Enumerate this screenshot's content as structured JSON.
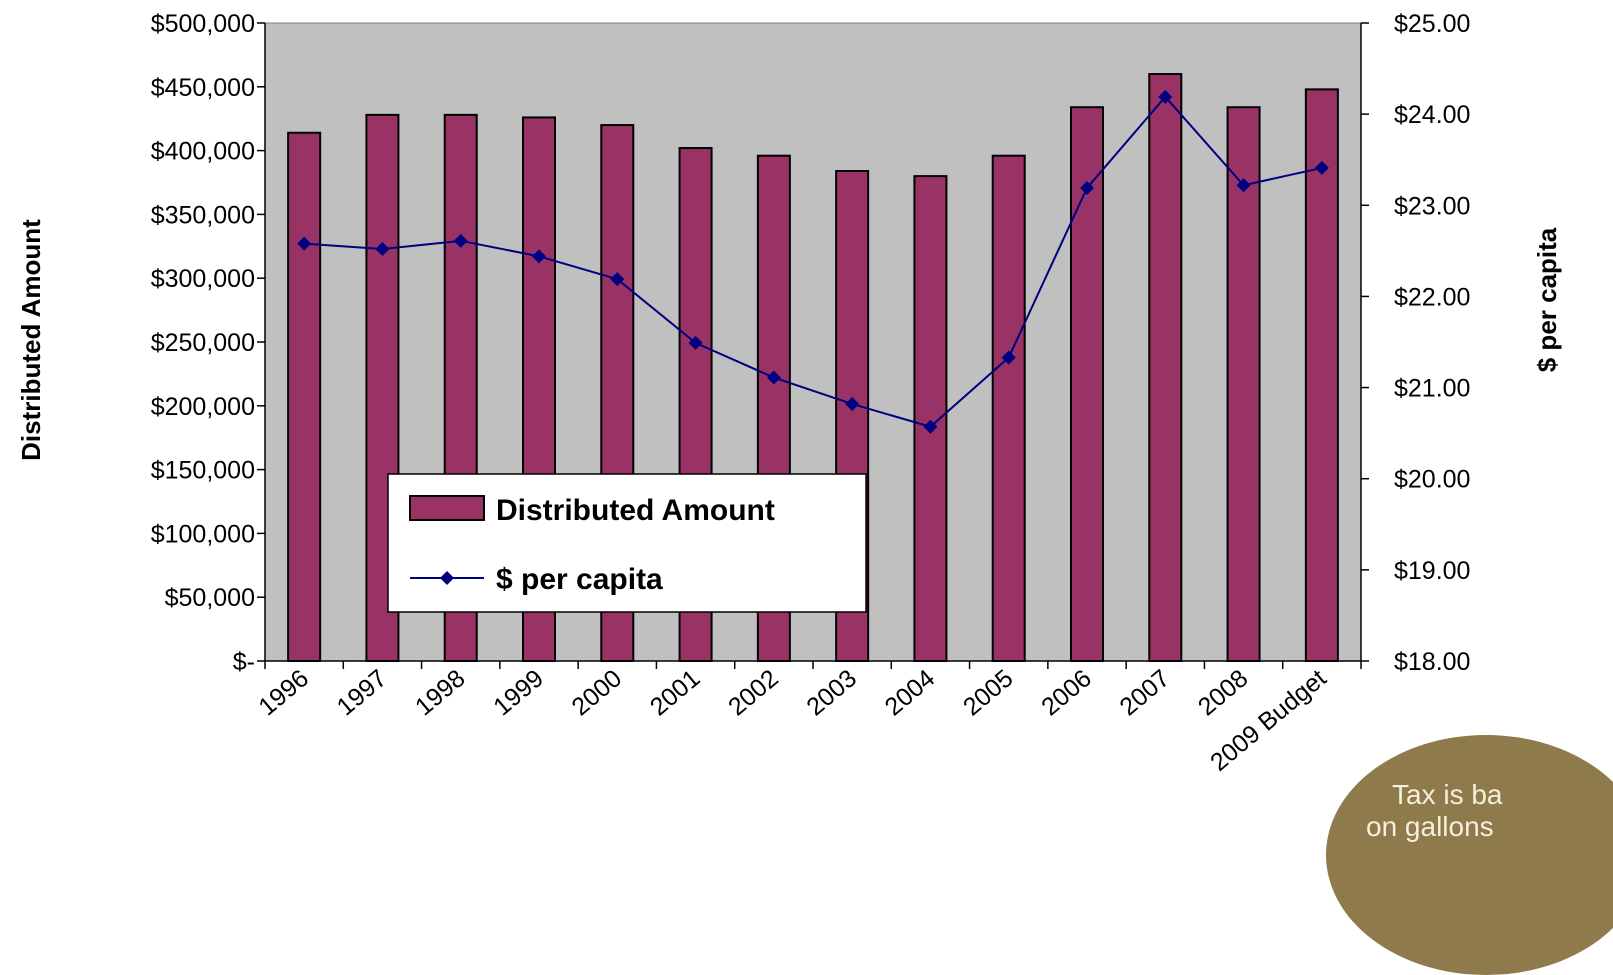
{
  "chart_data": {
    "type": "bar+line",
    "categories": [
      "1996",
      "1997",
      "1998",
      "1999",
      "2000",
      "2001",
      "2002",
      "2003",
      "2004",
      "2005",
      "2006",
      "2007",
      "2008",
      "2009 Budget"
    ],
    "series": [
      {
        "name": "Distributed Amount",
        "type": "bar",
        "axis": "left",
        "color": "#993366",
        "values": [
          414000,
          428000,
          428000,
          426000,
          420000,
          402000,
          396000,
          384000,
          380000,
          396000,
          434000,
          460000,
          434000,
          448000
        ]
      },
      {
        "name": "$ per capita",
        "type": "line",
        "axis": "right",
        "color": "#000080",
        "marker": "diamond",
        "values": [
          22.58,
          22.52,
          22.61,
          22.44,
          22.19,
          21.49,
          21.11,
          20.82,
          20.57,
          21.33,
          23.19,
          24.19,
          23.22,
          23.41
        ]
      }
    ],
    "y_left": {
      "label": "Distributed Amount",
      "range": [
        0,
        500000
      ],
      "tick_labels": [
        "$-",
        "$50,000",
        "$100,000",
        "$150,000",
        "$200,000",
        "$250,000",
        "$300,000",
        "$350,000",
        "$400,000",
        "$450,000",
        "$500,000"
      ]
    },
    "y_right": {
      "label": "$ per capita",
      "range": [
        18,
        25
      ],
      "tick_labels": [
        "$18.00",
        "$19.00",
        "$20.00",
        "$21.00",
        "$22.00",
        "$23.00",
        "$24.00",
        "$25.00"
      ]
    },
    "legend": {
      "placement": "lower-left-inside",
      "entries": [
        "Distributed Amount",
        "$ per capita"
      ]
    },
    "plot_background": "#c0c0c0",
    "grid": false
  },
  "callout": {
    "line1": "Tax is ba",
    "line2": "on gallons"
  }
}
